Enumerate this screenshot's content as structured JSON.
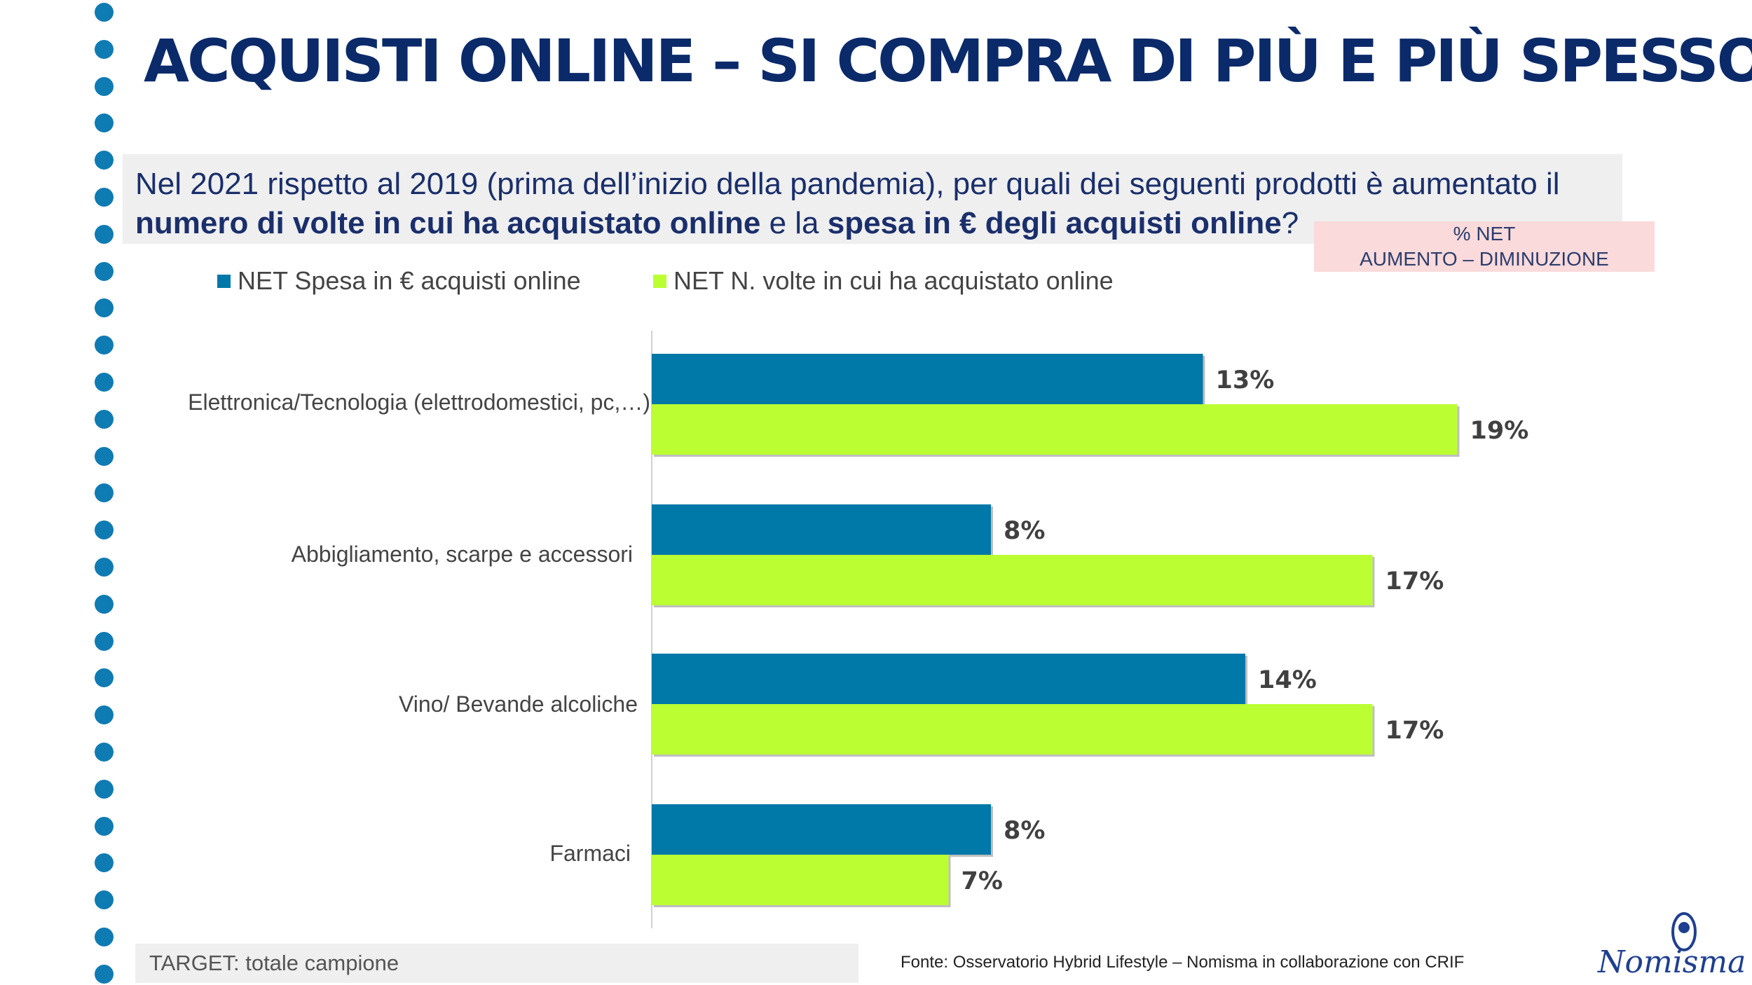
{
  "title": "ACQUISTI ONLINE – SI COMPRA DI PIÙ E PIÙ SPESSO",
  "question": {
    "line1": "Nel 2021 rispetto al 2019 (prima dell’inizio della pandemia), per quali dei seguenti prodotti è aumentato il",
    "line2_bold1": "numero di volte in cui ha acquistato online",
    "line2_mid": " e la ",
    "line2_bold2": "spesa in € degli acquisti online",
    "line2_end": "?"
  },
  "net_box": {
    "line1": "% NET",
    "line2": "AUMENTO – DIMINUZIONE"
  },
  "colors": {
    "spesa": "#0078a8",
    "volte": "#bbff33",
    "title": "#0b2a6a",
    "dots": "#0f7bb3"
  },
  "chart_data": {
    "type": "bar",
    "orientation": "horizontal",
    "categories": [
      "Elettronica/Tecnologia (elettrodomestici, pc,…)",
      "Abbigliamento, scarpe e accessori",
      "Vino/ Bevande alcoliche",
      "Farmaci"
    ],
    "series": [
      {
        "name": "NET Spesa in € acquisti online",
        "values": [
          13,
          8,
          14,
          8
        ],
        "labels": [
          "13%",
          "8%",
          "14%",
          "8%"
        ]
      },
      {
        "name": "NET N. volte in cui ha acquistato online",
        "values": [
          19,
          17,
          17,
          7
        ],
        "labels": [
          "19%",
          "17%",
          "17%",
          "7%"
        ]
      }
    ],
    "unit": "%",
    "xlim": [
      0,
      25
    ],
    "legend": "top-left",
    "grid": false
  },
  "target": "TARGET: totale campione",
  "source": "Fonte: Osservatorio Hybrid Lifestyle – Nomisma in collaborazione con CRIF",
  "logo": {
    "word": "Nomisma"
  }
}
